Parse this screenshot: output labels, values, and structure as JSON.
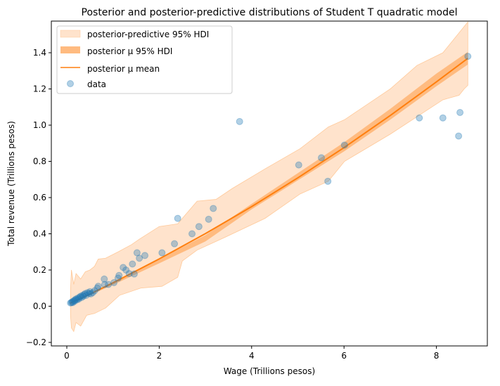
{
  "chart_data": {
    "type": "line",
    "title": "Posterior and posterior-predictive distributions of Student T quadratic model",
    "xlabel": "Wage (Trillions pesos)",
    "ylabel": "Total revenue (Trillions pesos)",
    "xlim": [
      -0.3,
      9.1
    ],
    "ylim": [
      -0.23,
      1.56
    ],
    "xticks": [
      0,
      2,
      4,
      6,
      8
    ],
    "yticks": [
      -0.2,
      0.0,
      0.2,
      0.4,
      0.6,
      0.8,
      1.0,
      1.2,
      1.4
    ],
    "grid": false,
    "legend_position": "top-left",
    "legend": [
      {
        "label": "posterior-predictive 95% HDI",
        "kind": "band-light"
      },
      {
        "label": "posterior μ 95% HDI",
        "kind": "band-dark"
      },
      {
        "label": "posterior μ mean",
        "kind": "line"
      },
      {
        "label": "data",
        "kind": "marker"
      }
    ],
    "colors": {
      "predictive_band": "#ffe3cc",
      "predictive_edge": "#ffc999",
      "mu_band": "#ffbb80",
      "mu_mean": "#ff7f0e",
      "data": "#1f77b4"
    },
    "predictive_hdi": {
      "upper": [
        [
          0.08,
          0.09
        ],
        [
          0.1,
          0.2
        ],
        [
          0.15,
          0.12
        ],
        [
          0.2,
          0.18
        ],
        [
          0.3,
          0.15
        ],
        [
          0.4,
          0.19
        ],
        [
          0.5,
          0.2
        ],
        [
          0.6,
          0.22
        ],
        [
          0.68,
          0.26
        ],
        [
          0.84,
          0.265
        ],
        [
          1.11,
          0.3
        ],
        [
          1.4,
          0.34
        ],
        [
          1.57,
          0.37
        ],
        [
          2.0,
          0.44
        ],
        [
          2.4,
          0.455
        ],
        [
          2.82,
          0.58
        ],
        [
          3.23,
          0.59
        ],
        [
          3.58,
          0.65
        ],
        [
          4.3,
          0.76
        ],
        [
          5.05,
          0.87
        ],
        [
          5.66,
          0.99
        ],
        [
          6.01,
          1.03
        ],
        [
          7.0,
          1.2
        ],
        [
          7.58,
          1.33
        ],
        [
          8.14,
          1.4
        ],
        [
          8.68,
          1.57
        ]
      ],
      "lower": [
        [
          0.08,
          -0.05
        ],
        [
          0.1,
          -0.12
        ],
        [
          0.15,
          -0.14
        ],
        [
          0.2,
          -0.09
        ],
        [
          0.3,
          -0.11
        ],
        [
          0.43,
          -0.05
        ],
        [
          0.6,
          -0.04
        ],
        [
          0.84,
          -0.01
        ],
        [
          1.14,
          0.06
        ],
        [
          1.6,
          0.1
        ],
        [
          2.06,
          0.11
        ],
        [
          2.4,
          0.16
        ],
        [
          2.5,
          0.25
        ],
        [
          2.82,
          0.31
        ],
        [
          3.42,
          0.38
        ],
        [
          4.29,
          0.485
        ],
        [
          5.05,
          0.62
        ],
        [
          5.66,
          0.69
        ],
        [
          6.01,
          0.8
        ],
        [
          7.0,
          0.95
        ],
        [
          8.14,
          1.14
        ],
        [
          8.49,
          1.165
        ],
        [
          8.6,
          1.2
        ],
        [
          8.68,
          1.22
        ]
      ]
    },
    "mu_hdi": {
      "x": [
        0.08,
        0.5,
        1,
        2,
        3,
        4,
        5,
        6,
        7,
        8,
        8.68
      ],
      "lower": [
        0.013,
        0.061,
        0.118,
        0.237,
        0.358,
        0.535,
        0.695,
        0.855,
        1.03,
        1.215,
        1.335
      ],
      "upper": [
        0.023,
        0.071,
        0.134,
        0.261,
        0.392,
        0.565,
        0.735,
        0.905,
        1.09,
        1.285,
        1.405
      ]
    },
    "mu_mean": {
      "x": [
        0.08,
        0.5,
        1,
        2,
        3,
        4,
        5,
        6,
        7,
        8,
        8.68
      ],
      "y": [
        0.017,
        0.067,
        0.129,
        0.261,
        0.401,
        0.55,
        0.709,
        0.876,
        1.053,
        1.239,
        1.369
      ]
    },
    "data": [
      [
        0.08,
        0.018
      ],
      [
        0.1,
        0.02
      ],
      [
        0.12,
        0.025
      ],
      [
        0.13,
        0.02
      ],
      [
        0.15,
        0.03
      ],
      [
        0.17,
        0.028
      ],
      [
        0.18,
        0.035
      ],
      [
        0.2,
        0.04
      ],
      [
        0.22,
        0.035
      ],
      [
        0.24,
        0.045
      ],
      [
        0.26,
        0.04
      ],
      [
        0.28,
        0.05
      ],
      [
        0.3,
        0.055
      ],
      [
        0.32,
        0.048
      ],
      [
        0.34,
        0.06
      ],
      [
        0.36,
        0.055
      ],
      [
        0.38,
        0.065
      ],
      [
        0.4,
        0.07
      ],
      [
        0.42,
        0.06
      ],
      [
        0.45,
        0.075
      ],
      [
        0.48,
        0.07
      ],
      [
        0.5,
        0.08
      ],
      [
        0.52,
        0.068
      ],
      [
        0.56,
        0.075
      ],
      [
        0.6,
        0.085
      ],
      [
        0.66,
        0.1
      ],
      [
        0.68,
        0.11
      ],
      [
        0.81,
        0.15
      ],
      [
        0.82,
        0.12
      ],
      [
        0.9,
        0.12
      ],
      [
        1.02,
        0.13
      ],
      [
        1.11,
        0.155
      ],
      [
        1.13,
        0.17
      ],
      [
        1.22,
        0.214
      ],
      [
        1.28,
        0.2
      ],
      [
        1.35,
        0.18
      ],
      [
        1.42,
        0.233
      ],
      [
        1.46,
        0.178
      ],
      [
        1.52,
        0.295
      ],
      [
        1.57,
        0.265
      ],
      [
        1.69,
        0.28
      ],
      [
        2.06,
        0.295
      ],
      [
        2.33,
        0.345
      ],
      [
        2.4,
        0.485
      ],
      [
        2.71,
        0.4
      ],
      [
        2.86,
        0.44
      ],
      [
        3.07,
        0.48
      ],
      [
        3.17,
        0.54
      ],
      [
        3.74,
        1.02
      ],
      [
        5.02,
        0.78
      ],
      [
        5.51,
        0.82
      ],
      [
        5.65,
        0.69
      ],
      [
        6.01,
        0.89
      ],
      [
        7.63,
        1.04
      ],
      [
        8.14,
        1.04
      ],
      [
        8.48,
        0.94
      ],
      [
        8.51,
        1.07
      ],
      [
        8.68,
        1.38
      ]
    ]
  }
}
